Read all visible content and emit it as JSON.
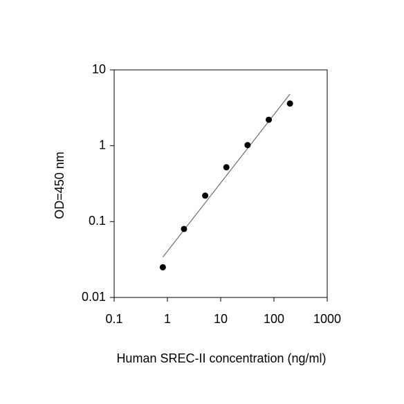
{
  "chart_data": {
    "type": "scatter",
    "x_label": "Human SREC-II concentration (ng/ml)",
    "y_label": "OD=450 nm",
    "x": [
      0.82,
      2.05,
      5.12,
      12.8,
      32,
      80,
      200
    ],
    "values": [
      0.025,
      0.08,
      0.22,
      0.52,
      1.02,
      2.2,
      3.6
    ],
    "color": "#000000",
    "fit_line": {
      "x": [
        0.82,
        200
      ],
      "values": [
        0.034,
        4.8
      ],
      "color": "#555555"
    },
    "x_log": true,
    "y_log": true,
    "xlim": [
      0.1,
      1000
    ],
    "ylim": [
      0.01,
      10
    ],
    "xticks": [
      0.1,
      1,
      10,
      100,
      1000
    ],
    "yticks": [
      0.01,
      0.1,
      1,
      10
    ],
    "grid": false
  }
}
